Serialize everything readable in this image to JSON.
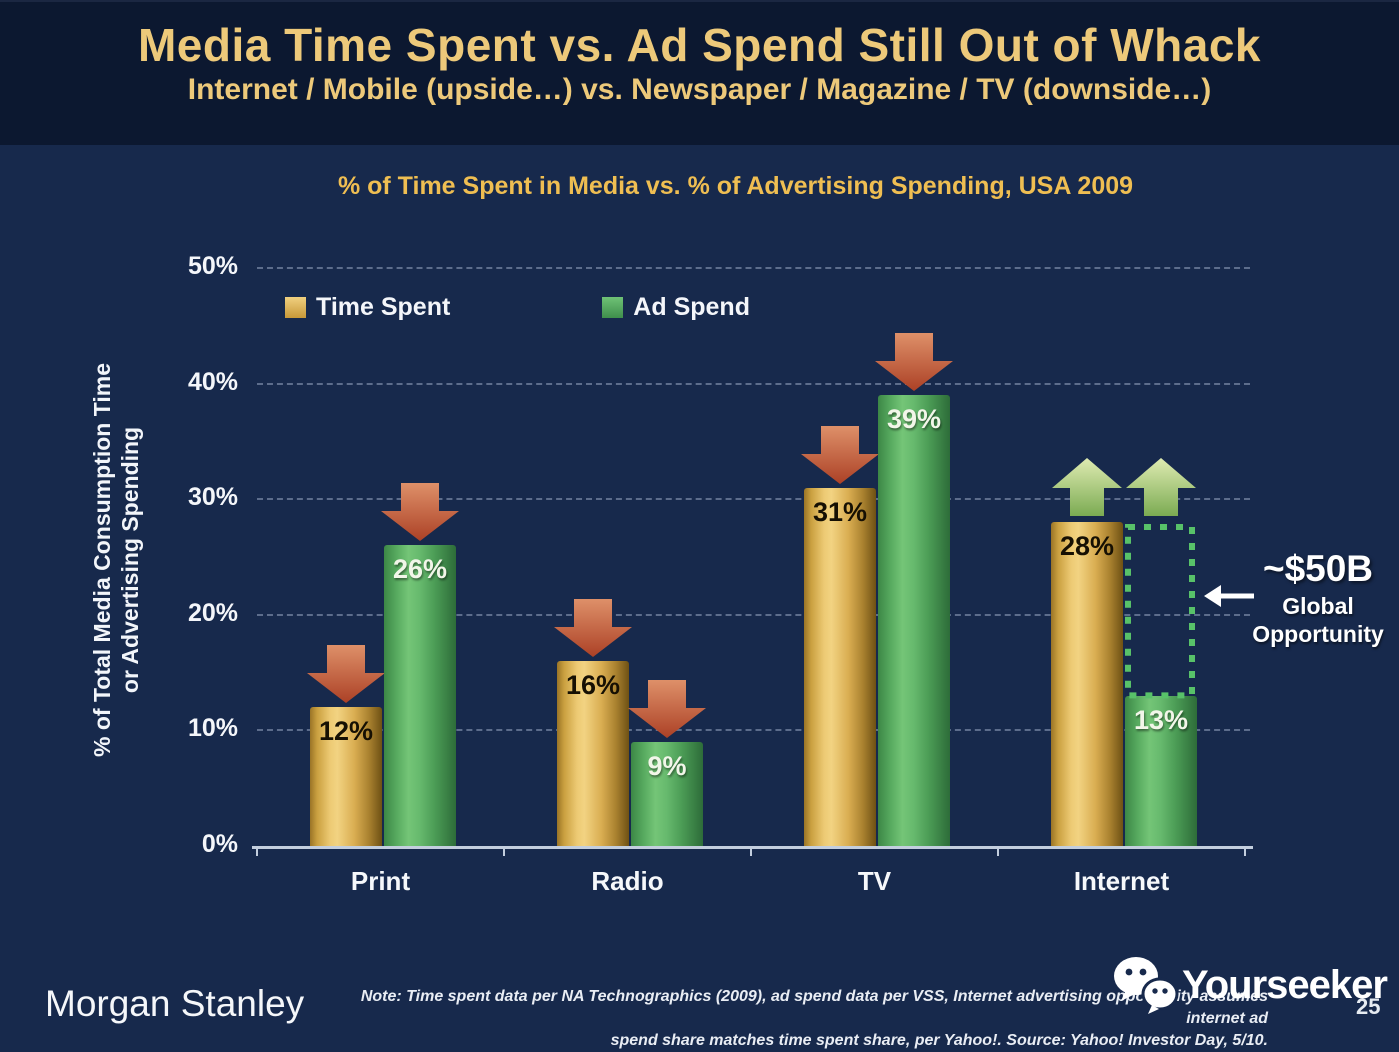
{
  "slide": {
    "title": "Media Time Spent vs. Ad Spend Still Out of Whack",
    "subtitle": "Internet / Mobile (upside…) vs. Newspaper / Magazine / TV (downside…)",
    "page_number": "25"
  },
  "chart_data": {
    "type": "bar",
    "title": "% of Time Spent in Media vs. % of Advertising Spending, USA 2009",
    "ylabel": "% of Total Media Consumption Time or Advertising Spending",
    "ylabel_lines": [
      "% of Total Media Consumption Time",
      "or Advertising Spending"
    ],
    "categories": [
      "Print",
      "Radio",
      "TV",
      "Internet"
    ],
    "series": [
      {
        "name": "Time Spent",
        "color": "#DDAE4F",
        "values": [
          12,
          16,
          31,
          28
        ]
      },
      {
        "name": "Ad Spend",
        "color": "#5AAE62",
        "values": [
          26,
          9,
          39,
          13
        ]
      }
    ],
    "value_labels": [
      [
        "12%",
        "16%",
        "31%",
        "28%"
      ],
      [
        "26%",
        "9%",
        "39%",
        "13%"
      ]
    ],
    "ylim": [
      0,
      50
    ],
    "yticks": [
      0,
      10,
      20,
      30,
      40,
      50
    ],
    "ytick_labels": [
      "0%",
      "10%",
      "20%",
      "30%",
      "40%",
      "50%"
    ],
    "grid": "dashed horizontal",
    "legend_position": "top-left inside plot",
    "trend_arrows": {
      "Print": "down",
      "Radio": "down",
      "TV": "down",
      "Internet": "up"
    },
    "annotation": {
      "value": "~$50B",
      "caption": "Global Opportunity",
      "category": "Internet",
      "series": "Ad Spend",
      "from_value": 13,
      "to_value": 28
    }
  },
  "footer": {
    "logo": "Morgan Stanley",
    "note_line1": "Note: Time spent data per NA Technographics (2009), ad spend data per VSS, Internet advertising opportunity assumes internet ad",
    "note_line2": "spend share matches time spent share, per Yahoo!. Source: Yahoo! Investor Day, 5/10.",
    "watermark": "Yourseeker"
  },
  "colors": {
    "header_bg": "#0C1830",
    "body_bg": "#17294C",
    "title_gold": "#EDC97A",
    "chart_title_gold": "#EFBE52",
    "bar_gold": "#DDAE4F",
    "bar_green": "#5AAE62",
    "arrow_down_red": "#C65A3C",
    "arrow_up_green": "#9CC46E",
    "dotted_green": "#58C269",
    "axis_line": "#C3CEDE"
  }
}
